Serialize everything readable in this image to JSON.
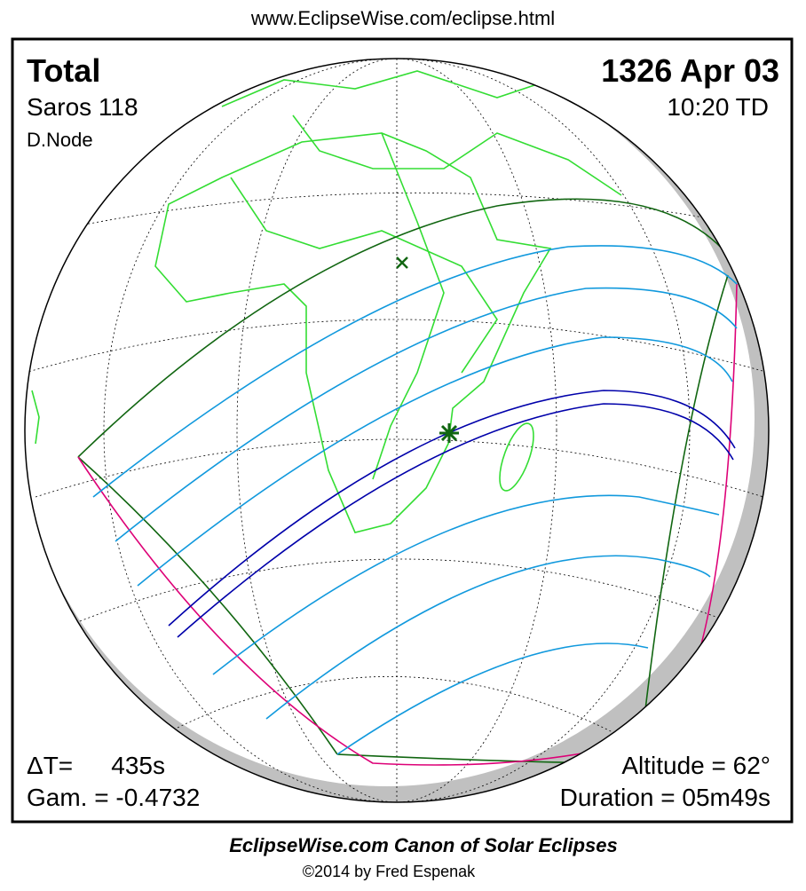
{
  "header": {
    "url": "www.EclipseWise.com/eclipse.html"
  },
  "eclipse": {
    "type": "Total",
    "saros": "Saros 118",
    "node": "D.Node",
    "date": "1326 Apr 03",
    "time": "10:20 TD",
    "delta_t_label": "ΔT=",
    "delta_t": "435s",
    "gamma": "Gam. = -0.4732",
    "altitude": "Altitude = 62°",
    "duration": "Duration = 05m49s"
  },
  "footer": {
    "title": "EclipseWise.com Canon of Solar Eclipses",
    "copyright": "©2014 by Fred Espenak"
  }
}
